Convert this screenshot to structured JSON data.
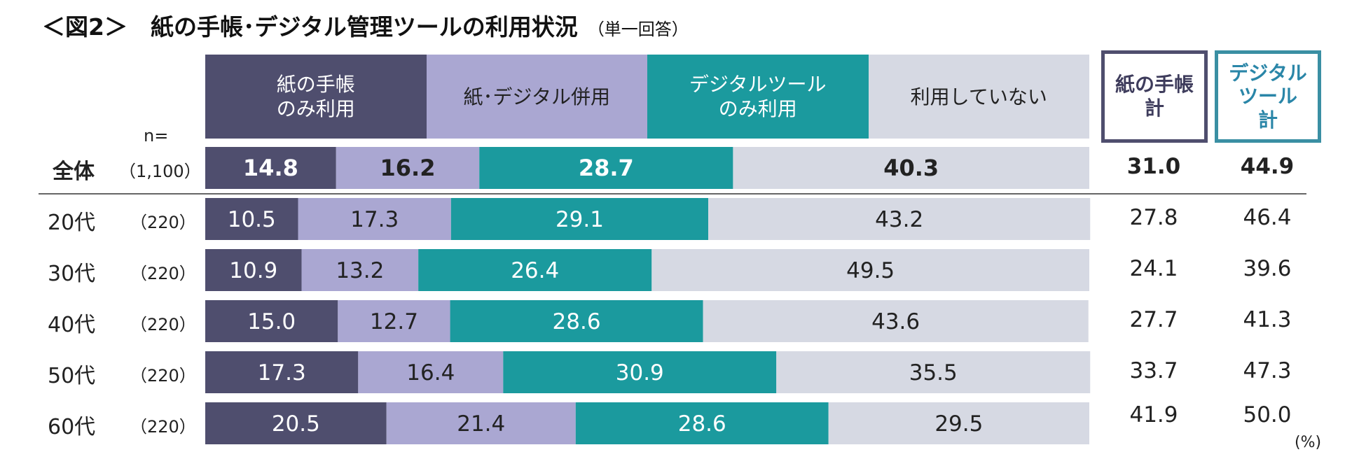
{
  "title": "＜図2＞　紙の手帳･デジタル管理ツールの利用状況",
  "title_note": "（単一回答）",
  "n_label": "n=",
  "unit_label": "(%)",
  "colors": {
    "paper_only": "#4f4e6e",
    "both": "#aaa7d2",
    "digital_only": "#1b9a9e",
    "none": "#d6d9e3",
    "paper_total_border": "#4f4e6e",
    "digital_total_border": "#3a8fa3",
    "digital_total_text": "#2a86a8"
  },
  "legend": [
    {
      "label": "紙の手帳\nのみ利用"
    },
    {
      "label": "紙･デジタル併用"
    },
    {
      "label": "デジタルツール\nのみ利用"
    },
    {
      "label": "利用していない"
    }
  ],
  "totals_headers": {
    "paper": "紙の手帳\n計",
    "digital": "デジタル\nツール\n計"
  },
  "chart_data": {
    "type": "bar",
    "orientation": "horizontal",
    "stacked": true,
    "title": "＜図2＞　紙の手帳･デジタル管理ツールの利用状況",
    "xlim": [
      0,
      100
    ],
    "categories": [
      "全体",
      "20代",
      "30代",
      "40代",
      "50代",
      "60代"
    ],
    "n": [
      "（1,100）",
      "（220）",
      "（220）",
      "（220）",
      "（220）",
      "（220）"
    ],
    "series": [
      {
        "name": "紙の手帳のみ利用",
        "values": [
          "14.8",
          "10.5",
          "10.9",
          "15.0",
          "17.3",
          "20.5"
        ]
      },
      {
        "name": "紙･デジタル併用",
        "values": [
          "16.2",
          "17.3",
          "13.2",
          "12.7",
          "16.4",
          "21.4"
        ]
      },
      {
        "name": "デジタルツールのみ利用",
        "values": [
          "28.7",
          "29.1",
          "26.4",
          "28.6",
          "30.9",
          "28.6"
        ]
      },
      {
        "name": "利用していない",
        "values": [
          "40.3",
          "43.2",
          "49.5",
          "43.6",
          "35.5",
          "29.5"
        ]
      }
    ],
    "totals": {
      "paper": [
        "31.0",
        "27.8",
        "24.1",
        "27.7",
        "33.7",
        "41.9"
      ],
      "digital": [
        "44.9",
        "46.4",
        "39.6",
        "41.3",
        "47.3",
        "50.0"
      ]
    }
  }
}
